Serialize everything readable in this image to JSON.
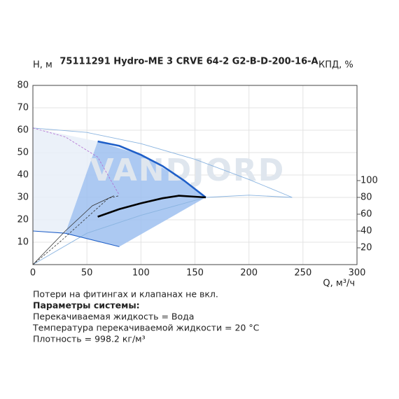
{
  "chart_data": {
    "type": "line",
    "title": "75111291 Hydro-ME 3 CRVE 64-2 G2-B-D-200-16-A",
    "y_label": "H, м",
    "y2_label": "КПД, %",
    "x_label": "Q, м³/ч",
    "watermark": "VANDJORD",
    "xlim": [
      0,
      300
    ],
    "xticks": [
      0,
      50,
      100,
      150,
      200,
      250,
      300
    ],
    "ylim": [
      0,
      80
    ],
    "yticks": [
      10,
      20,
      30,
      40,
      50,
      60,
      70,
      80
    ],
    "y2lim": [
      0,
      213.3
    ],
    "y2ticks": [
      20,
      40,
      60,
      80,
      100
    ],
    "grid": true,
    "regions": [
      {
        "color": "#e8eef8",
        "x": [
          0,
          60,
          30,
          0
        ],
        "values": [
          61,
          55,
          14,
          15
        ]
      },
      {
        "color": "#9dbff0",
        "x": [
          60,
          100,
          140,
          160,
          80,
          30
        ],
        "values": [
          55,
          49,
          37.5,
          30,
          8,
          14
        ]
      }
    ],
    "series": [
      {
        "color": "#8ab4e0",
        "width": 0.9,
        "x": [
          0,
          50,
          100,
          150,
          200,
          240
        ],
        "values": [
          61,
          59,
          54,
          47,
          38,
          30
        ]
      },
      {
        "color": "#8ab4e0",
        "width": 0.9,
        "x": [
          0,
          50,
          100,
          160,
          200,
          240
        ],
        "values": [
          0,
          14,
          22,
          30,
          31,
          30
        ]
      },
      {
        "color": "#b06ad0",
        "width": 0.8,
        "dash": true,
        "x": [
          0,
          30,
          60,
          80
        ],
        "values": [
          61,
          57,
          48,
          31
        ]
      },
      {
        "color": "#1f5fc8",
        "width": 1.1,
        "x": [
          0,
          30,
          80
        ],
        "values": [
          15,
          14,
          8
        ]
      },
      {
        "color": "#1f5fc8",
        "width": 2.6,
        "x": [
          60,
          80,
          100,
          120,
          140,
          160
        ],
        "values": [
          55,
          53,
          49,
          44,
          37.5,
          30
        ]
      },
      {
        "color": "#333333",
        "width": 0.8,
        "dash": true,
        "axis": "y2",
        "x": [
          0,
          25,
          50,
          70,
          80
        ],
        "values": [
          0,
          27,
          56,
          79,
          82
        ]
      },
      {
        "color": "#333333",
        "width": 0.8,
        "axis": "y2",
        "x": [
          0,
          30,
          55,
          75
        ],
        "values": [
          0,
          40,
          70,
          82
        ]
      },
      {
        "color": "#000000",
        "width": 2.6,
        "axis": "y2",
        "x": [
          60,
          80,
          100,
          120,
          135,
          160
        ],
        "values": [
          57,
          66,
          73,
          79,
          82,
          80
        ]
      }
    ],
    "notes": [
      "Потери на фитингах и клапанах не вкл.",
      "Параметры системы:",
      "Перекачиваемая жидкость = Вода",
      "Температура перекачиваемой жидкости = 20 °C",
      "Плотность = 998.2 кг/м³"
    ]
  }
}
